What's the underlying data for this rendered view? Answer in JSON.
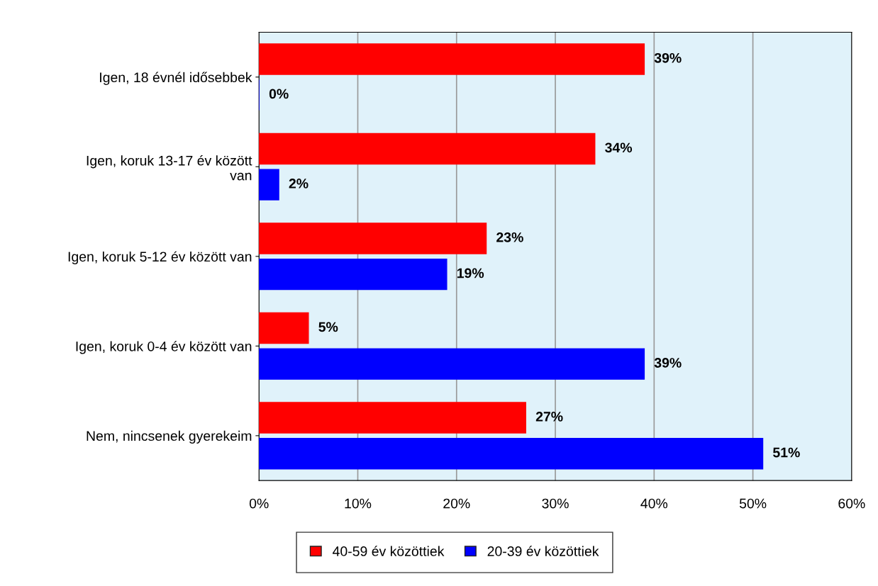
{
  "chart_data": {
    "type": "bar",
    "orientation": "horizontal",
    "categories": [
      "Igen, 18 évnél idősebbek",
      "Igen, koruk 13-17 év között\nvan",
      "Igen, koruk 5-12 év között van",
      "Igen, koruk 0-4 év között van",
      "Nem, nincsenek gyerekeim"
    ],
    "series": [
      {
        "name": "40-59 év közöttiek",
        "color": "#ff0000",
        "values": [
          39,
          34,
          23,
          5,
          27
        ],
        "value_labels": [
          "39%",
          "34%",
          "23%",
          "5%",
          "27%"
        ]
      },
      {
        "name": "20-39 év közöttiek",
        "color": "#0000ff",
        "values": [
          0,
          2,
          19,
          39,
          51
        ],
        "value_labels": [
          "0%",
          "2%",
          "19%",
          "39%",
          "51%"
        ]
      }
    ],
    "xlim": [
      0,
      60
    ],
    "xticks": [
      {
        "value": 0,
        "label": "0%"
      },
      {
        "value": 10,
        "label": "10%"
      },
      {
        "value": 20,
        "label": "20%"
      },
      {
        "value": 30,
        "label": "30%"
      },
      {
        "value": 40,
        "label": "40%"
      },
      {
        "value": 50,
        "label": "50%"
      },
      {
        "value": 60,
        "label": "60%"
      }
    ],
    "grid": "x",
    "legend": "bottom"
  }
}
